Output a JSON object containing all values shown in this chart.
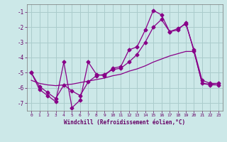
{
  "xlabel": "Windchill (Refroidissement éolien,°C)",
  "bg_color": "#cce8e8",
  "grid_color": "#aacccc",
  "line_color": "#880088",
  "xlim": [
    -0.5,
    23.5
  ],
  "ylim": [
    -7.5,
    -0.5
  ],
  "yticks": [
    -7,
    -6,
    -5,
    -4,
    -3,
    -2,
    -1
  ],
  "xticks": [
    0,
    1,
    2,
    3,
    4,
    5,
    6,
    7,
    8,
    9,
    10,
    11,
    12,
    13,
    14,
    15,
    16,
    17,
    18,
    19,
    20,
    21,
    22,
    23
  ],
  "line1_x": [
    0,
    1,
    2,
    3,
    4,
    5,
    6,
    7,
    8,
    9,
    10,
    11,
    12,
    13,
    14,
    15,
    16,
    17,
    18,
    19,
    20,
    21,
    22,
    23
  ],
  "line1_y": [
    -5.0,
    -6.1,
    -6.5,
    -6.9,
    -4.3,
    -7.3,
    -6.8,
    -4.3,
    -5.1,
    -5.2,
    -4.7,
    -4.6,
    -3.5,
    -3.3,
    -2.2,
    -0.9,
    -1.2,
    -2.3,
    -2.2,
    -1.7,
    -3.6,
    -5.7,
    -5.8,
    -5.8
  ],
  "line2_x": [
    0,
    1,
    2,
    3,
    4,
    5,
    6,
    7,
    8,
    9,
    10,
    11,
    12,
    13,
    14,
    15,
    16,
    17,
    18,
    19,
    20,
    21,
    22,
    23
  ],
  "line2_y": [
    -5.0,
    -5.9,
    -6.3,
    -6.7,
    -5.8,
    -6.2,
    -6.5,
    -5.6,
    -5.2,
    -5.1,
    -4.8,
    -4.7,
    -4.3,
    -3.8,
    -3.0,
    -2.0,
    -1.5,
    -2.3,
    -2.1,
    -1.8,
    -3.5,
    -5.5,
    -5.7,
    -5.7
  ],
  "line3_x": [
    0,
    1,
    2,
    3,
    4,
    5,
    6,
    7,
    8,
    9,
    10,
    11,
    12,
    13,
    14,
    15,
    16,
    17,
    18,
    19,
    20,
    21,
    22,
    23
  ],
  "line3_y": [
    -5.5,
    -5.7,
    -5.8,
    -5.85,
    -5.8,
    -5.75,
    -5.65,
    -5.55,
    -5.45,
    -5.35,
    -5.2,
    -5.1,
    -4.9,
    -4.75,
    -4.55,
    -4.3,
    -4.1,
    -3.9,
    -3.75,
    -3.6,
    -3.6,
    -5.7,
    -5.75,
    -5.8
  ]
}
